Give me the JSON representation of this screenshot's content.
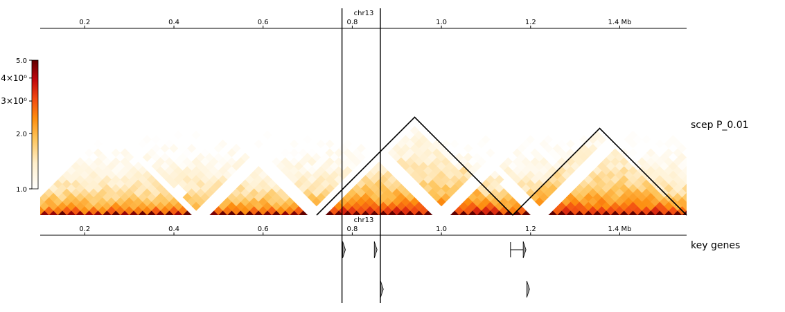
{
  "chart_data": {
    "type": "heatmap",
    "chromosome": "chr13",
    "xlim": [
      0.1,
      1.55
    ],
    "x_ticks": [
      {
        "value": 0.2,
        "label": "0.2"
      },
      {
        "value": 0.4,
        "label": "0.4"
      },
      {
        "value": 0.6,
        "label": "0.6"
      },
      {
        "value": 0.8,
        "label": "0.8"
      },
      {
        "value": 1.0,
        "label": "1.0"
      },
      {
        "value": 1.2,
        "label": "1.2"
      },
      {
        "value": 1.4,
        "label": "1.4 Mb"
      }
    ],
    "colorbar": {
      "colormap": "fall",
      "scale": "log",
      "range": [
        1.0,
        5.0
      ],
      "tick_labels": [
        "5.0",
        "4×10⁰",
        "3×10⁰",
        "2.0",
        "1.0"
      ],
      "tick_values": [
        5.0,
        4.0,
        3.0,
        2.0,
        1.0
      ]
    },
    "tracks": [
      {
        "label": "scep   P_0.01",
        "kind": "hic"
      },
      {
        "label": "key genes",
        "kind": "genes"
      }
    ],
    "tads": [
      {
        "start": 0.72,
        "end": 1.16
      },
      {
        "start": 1.16,
        "end": 1.55
      }
    ],
    "highlight_lines": [
      0.777,
      0.863
    ],
    "masked_bins": [
      0.455,
      0.718,
      1.005,
      1.225
    ],
    "genes": [
      {
        "start": 0.777,
        "end": 0.78,
        "strand": "+",
        "row": 0
      },
      {
        "start": 0.848,
        "end": 0.851,
        "strand": "+",
        "row": 0
      },
      {
        "start": 1.155,
        "end": 1.185,
        "strand": "+",
        "row": 0
      },
      {
        "start": 0.862,
        "end": 0.865,
        "strand": "+",
        "row": 1
      },
      {
        "start": 1.19,
        "end": 1.193,
        "strand": "+",
        "row": 1
      }
    ]
  }
}
